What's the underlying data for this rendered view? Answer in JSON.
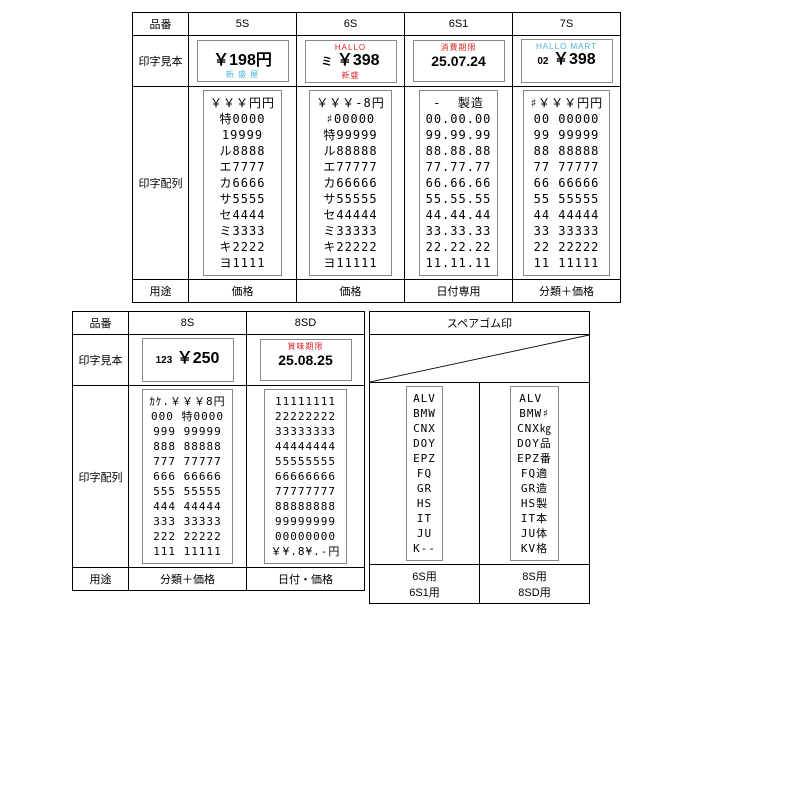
{
  "headers": {
    "model": "品番",
    "sample": "印字見本",
    "grid": "印字配列",
    "use": "用途"
  },
  "top": {
    "cols": [
      "5S",
      "6S",
      "6S1",
      "7S"
    ],
    "samples": [
      {
        "top": "",
        "topColor": "blue",
        "price": "￥198円",
        "priceColor": "black",
        "bot": "新 盛 屋",
        "botColor": "blue"
      },
      {
        "top": "HALLO",
        "topColor": "red",
        "prefix": "ミ",
        "price": "￥398",
        "priceColor": "black",
        "bot": "新盛",
        "botColor": "red"
      },
      {
        "top": "消費期限",
        "topColor": "red",
        "price": "25.07.24",
        "priceColor": "black",
        "bot": "",
        "botColor": "red"
      },
      {
        "top": "HALLO MART",
        "topColor": "blue",
        "prefix": "02",
        "price": "￥398",
        "priceColor": "black",
        "bot": "",
        "botColor": "blue"
      }
    ],
    "grids": [
      [
        "￥￥￥円円",
        "特0000",
        "19999",
        "ル8888",
        "エ7777",
        "カ6666",
        "サ5555",
        "セ4444",
        "ミ3333",
        "キ2222",
        "ヨ1111"
      ],
      [
        "￥￥￥-8円",
        "♯00000",
        "特99999",
        "ル88888",
        "エ77777",
        "カ66666",
        "サ55555",
        "セ44444",
        "ミ33333",
        "キ22222",
        "ヨ11111"
      ],
      [
        "-  製造",
        "00.00.00",
        "99.99.99",
        "88.88.88",
        "77.77.77",
        "66.66.66",
        "55.55.55",
        "44.44.44",
        "33.33.33",
        "22.22.22",
        "11.11.11"
      ],
      [
        "♯￥￥￥円円",
        "00 00000",
        "99 99999",
        "88 88888",
        "77 77777",
        "66 66666",
        "55 55555",
        "44 44444",
        "33 33333",
        "22 22222",
        "11 11111"
      ]
    ],
    "uses": [
      "価格",
      "価格",
      "日付専用",
      "分類＋価格"
    ]
  },
  "botLeft": {
    "cols": [
      "8S",
      "8SD"
    ],
    "samples": [
      {
        "top": "",
        "topColor": "red",
        "prefix": "123",
        "price": "￥250",
        "priceColor": "black",
        "bot": "",
        "botColor": "red"
      },
      {
        "top": "賞味期限",
        "topColor": "red",
        "price": "25.08.25",
        "priceColor": "black",
        "bot": "",
        "botColor": "red"
      }
    ],
    "grids": [
      [
        "ｶｹ.￥￥￥8円",
        "000 特0000",
        "999 99999",
        "888 88888",
        "777 77777",
        "666 66666",
        "555 55555",
        "444 44444",
        "333 33333",
        "222 22222",
        "111 11111"
      ],
      [
        "11111111",
        "22222222",
        "33333333",
        "44444444",
        "55555555",
        "66666666",
        "77777777",
        "88888888",
        "99999999",
        "00000000",
        "￥¥.8¥.-円"
      ]
    ],
    "uses": [
      "分類＋価格",
      "日付・価格"
    ]
  },
  "spare": {
    "title": "スペアゴム印",
    "gridA": [
      "ALV",
      "BMW",
      "CNX",
      "DOY",
      "EPZ",
      "FQ",
      "GR",
      "HS",
      "IT",
      "JU",
      "K--"
    ],
    "gridB": [
      "ALV ",
      "BMW♯",
      "CNX㎏",
      "DOY品",
      "EPZ番",
      "FQ適",
      "GR造",
      "HS製",
      "IT本",
      "JU体",
      "KV格"
    ],
    "useA": "6S用\n6S1用",
    "useB": "8S用\n8SD用"
  }
}
